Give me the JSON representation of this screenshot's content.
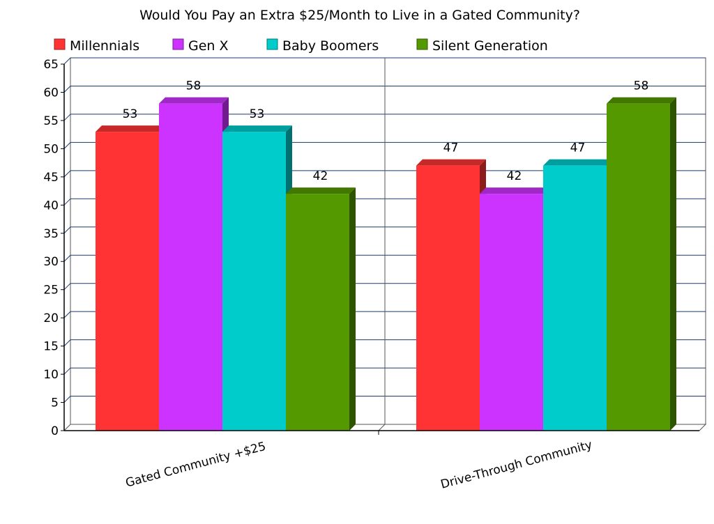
{
  "chart_data": {
    "type": "bar",
    "title": "Would You Pay an Extra $25/Month to Live in a Gated Community?",
    "categories": [
      "Gated Community +$25",
      "Drive-Through Community"
    ],
    "series": [
      {
        "name": "Millennials",
        "color": "#ff3333",
        "values": [
          53,
          47
        ]
      },
      {
        "name": "Gen X",
        "color": "#cc33ff",
        "values": [
          58,
          42
        ]
      },
      {
        "name": "Baby Boomers",
        "color": "#00cccc",
        "values": [
          53,
          47
        ]
      },
      {
        "name": "Silent Generation",
        "color": "#559900",
        "values": [
          42,
          58
        ]
      }
    ],
    "ylim": [
      0,
      65
    ],
    "yticks": [
      0,
      5,
      10,
      15,
      20,
      25,
      30,
      35,
      40,
      45,
      50,
      55,
      60,
      65
    ],
    "grid": true,
    "legend_position": "top"
  }
}
